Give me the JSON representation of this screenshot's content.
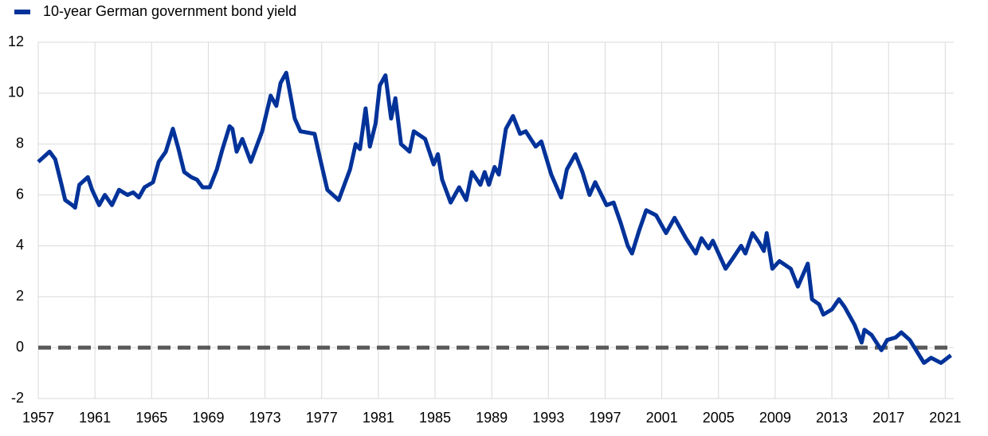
{
  "chart_data": {
    "type": "line",
    "series": [
      {
        "name": "10-year German government bond yield",
        "color": "#003299",
        "x": [
          1957.0,
          1957.4,
          1957.8,
          1958.2,
          1958.6,
          1958.9,
          1959.4,
          1959.6,
          1959.9,
          1960.5,
          1960.8,
          1961.3,
          1961.7,
          1962.2,
          1962.7,
          1963.3,
          1963.7,
          1964.1,
          1964.5,
          1965.1,
          1965.5,
          1966.0,
          1966.5,
          1966.9,
          1967.3,
          1967.8,
          1968.2,
          1968.6,
          1969.1,
          1969.6,
          1970.0,
          1970.5,
          1970.7,
          1971.0,
          1971.4,
          1972.0,
          1972.4,
          1972.8,
          1973.4,
          1973.8,
          1974.1,
          1974.5,
          1975.1,
          1975.5,
          1976.5,
          1976.9,
          1977.4,
          1978.2,
          1978.6,
          1979.0,
          1979.4,
          1979.7,
          1980.1,
          1980.4,
          1980.8,
          1981.1,
          1981.5,
          1981.9,
          1982.2,
          1982.6,
          1983.2,
          1983.5,
          1984.3,
          1984.9,
          1985.2,
          1985.5,
          1986.1,
          1986.7,
          1987.2,
          1987.6,
          1988.2,
          1988.5,
          1988.8,
          1989.2,
          1989.5,
          1990.0,
          1990.5,
          1991.0,
          1991.4,
          1992.1,
          1992.5,
          1993.2,
          1993.9,
          1994.3,
          1994.9,
          1995.4,
          1995.9,
          1996.3,
          1997.1,
          1997.6,
          1998.1,
          1998.6,
          1998.9,
          1999.4,
          1999.9,
          2000.6,
          2001.3,
          2001.9,
          2002.7,
          2003.4,
          2003.8,
          2004.3,
          2004.6,
          2005.5,
          2006.0,
          2006.6,
          2006.9,
          2007.4,
          2007.9,
          2008.2,
          2008.4,
          2008.8,
          2009.3,
          2010.1,
          2010.6,
          2011.3,
          2011.6,
          2012.1,
          2012.4,
          2013.0,
          2013.5,
          2013.9,
          2014.6,
          2015.1,
          2015.3,
          2015.8,
          2016.5,
          2016.9,
          2017.5,
          2017.9,
          2018.5,
          2019.5,
          2020.0,
          2020.7,
          2021.4
        ],
        "values": [
          7.3,
          7.5,
          7.7,
          7.4,
          6.5,
          5.8,
          5.6,
          5.5,
          6.4,
          6.7,
          6.2,
          5.6,
          6.0,
          5.6,
          6.2,
          6.0,
          6.1,
          5.9,
          6.3,
          6.5,
          7.3,
          7.7,
          8.6,
          7.8,
          6.9,
          6.7,
          6.6,
          6.3,
          6.3,
          7.0,
          7.8,
          8.7,
          8.6,
          7.7,
          8.2,
          7.3,
          7.9,
          8.5,
          9.9,
          9.5,
          10.4,
          10.8,
          9.0,
          8.5,
          8.4,
          7.4,
          6.2,
          5.8,
          6.4,
          7.0,
          8.0,
          7.8,
          9.4,
          7.9,
          8.8,
          10.3,
          10.7,
          9.0,
          9.8,
          8.0,
          7.7,
          8.5,
          8.2,
          7.2,
          7.6,
          6.6,
          5.7,
          6.3,
          5.8,
          6.9,
          6.4,
          6.9,
          6.4,
          7.1,
          6.8,
          8.6,
          9.1,
          8.4,
          8.5,
          7.9,
          8.1,
          6.8,
          5.9,
          7.0,
          7.6,
          6.9,
          6.0,
          6.5,
          5.6,
          5.7,
          4.9,
          4.0,
          3.7,
          4.6,
          5.4,
          5.2,
          4.5,
          5.1,
          4.3,
          3.7,
          4.3,
          3.9,
          4.2,
          3.1,
          3.5,
          4.0,
          3.7,
          4.5,
          4.1,
          3.8,
          4.5,
          3.1,
          3.4,
          3.1,
          2.4,
          3.3,
          1.9,
          1.7,
          1.3,
          1.5,
          1.9,
          1.6,
          0.9,
          0.2,
          0.7,
          0.5,
          -0.1,
          0.3,
          0.4,
          0.6,
          0.3,
          -0.6,
          -0.4,
          -0.6,
          -0.3
        ]
      }
    ],
    "reference_lines": [
      {
        "y": 0,
        "color": "#595959",
        "dashed": true
      }
    ],
    "xlim": [
      1957,
      2021.6
    ],
    "xticks": [
      1957,
      1961,
      1965,
      1969,
      1973,
      1977,
      1981,
      1985,
      1989,
      1993,
      1997,
      2001,
      2005,
      2009,
      2013,
      2017,
      2021
    ],
    "ylim": [
      -2,
      12
    ],
    "yticks": [
      -2,
      0,
      2,
      4,
      6,
      8,
      10,
      12
    ],
    "grid": true,
    "legend": "top-left"
  }
}
